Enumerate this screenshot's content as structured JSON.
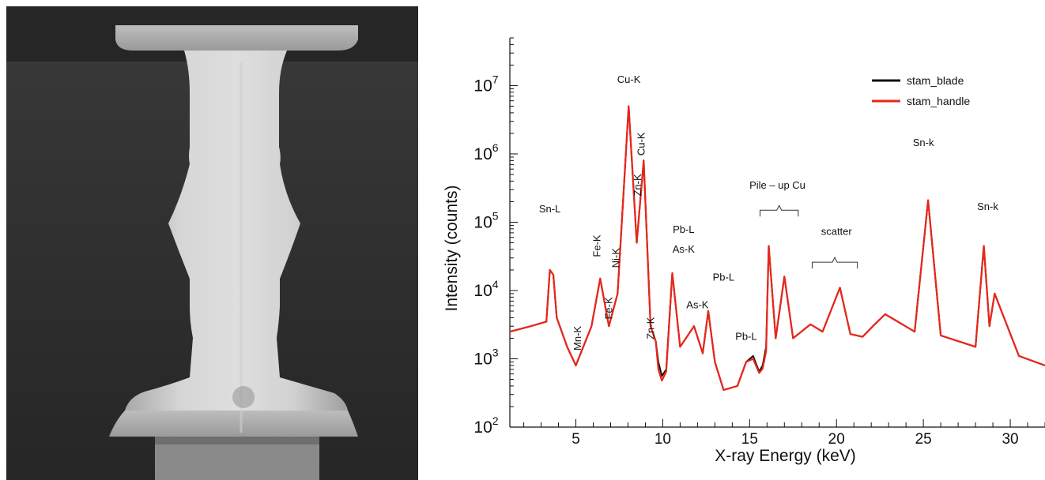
{
  "chart_data": {
    "type": "line",
    "title": "",
    "xlabel": "X-ray Energy (keV)",
    "ylabel": "Intensity (counts)",
    "xlim": [
      1.2,
      32.0
    ],
    "ylim": [
      100,
      50000000
    ],
    "yscale": "log",
    "xticks": [
      5,
      10,
      15,
      20,
      25,
      30
    ],
    "xtick_labels": [
      "5",
      "10",
      "15",
      "20",
      "25",
      "30"
    ],
    "yticks": [
      100,
      1000,
      10000,
      100000,
      1000000,
      10000000
    ],
    "ytick_labels": [
      {
        "base": "10",
        "exp": "2"
      },
      {
        "base": "10",
        "exp": "3"
      },
      {
        "base": "10",
        "exp": "4"
      },
      {
        "base": "10",
        "exp": "5"
      },
      {
        "base": "10",
        "exp": "6"
      },
      {
        "base": "10",
        "exp": "7"
      }
    ],
    "legend_position": "top-right",
    "series": [
      {
        "name": "stam_blade",
        "color": "#111111",
        "x": [
          1.2,
          2.4,
          3.3,
          3.5,
          3.7,
          3.9,
          4.5,
          5.0,
          5.9,
          6.4,
          6.9,
          7.4,
          8.04,
          8.5,
          8.9,
          9.3,
          9.6,
          9.75,
          9.95,
          10.2,
          10.55,
          11.0,
          11.8,
          12.3,
          12.62,
          13.0,
          13.5,
          14.3,
          14.8,
          15.2,
          15.55,
          15.75,
          15.95,
          16.1,
          16.5,
          17.0,
          17.5,
          18.5,
          19.2,
          20.2,
          20.8,
          21.5,
          22.2,
          22.8,
          24.5,
          25.27,
          26.0,
          28.0,
          28.48,
          28.8,
          29.1,
          30.5,
          32.0
        ],
        "y": [
          2500,
          3000,
          3500,
          20000,
          17000,
          4000,
          1500,
          800,
          3000,
          15000,
          3000,
          9000,
          5000000,
          50000,
          800000,
          3000,
          1800,
          900,
          560,
          700,
          18000,
          1500,
          3000,
          1200,
          5000,
          900,
          350,
          400,
          900,
          1100,
          650,
          800,
          1500,
          45000,
          2000,
          16000,
          2000,
          3200,
          2500,
          11000,
          2300,
          2100,
          3200,
          4500,
          2500,
          210000,
          2200,
          1500,
          45000,
          3000,
          9000,
          1100,
          800
        ]
      },
      {
        "name": "stam_handle",
        "color": "#e8261a",
        "x": [
          1.2,
          2.4,
          3.3,
          3.5,
          3.7,
          3.9,
          4.5,
          5.0,
          5.9,
          6.4,
          6.9,
          7.4,
          8.04,
          8.5,
          8.9,
          9.3,
          9.6,
          9.75,
          9.95,
          10.2,
          10.55,
          11.0,
          11.8,
          12.3,
          12.62,
          13.0,
          13.5,
          14.3,
          14.8,
          15.2,
          15.55,
          15.75,
          15.95,
          16.1,
          16.5,
          17.0,
          17.5,
          18.5,
          19.2,
          20.2,
          20.8,
          21.5,
          22.2,
          22.8,
          24.5,
          25.27,
          26.0,
          28.0,
          28.48,
          28.8,
          29.1,
          30.5,
          32.0
        ],
        "y": [
          2500,
          3000,
          3500,
          20000,
          17000,
          4000,
          1500,
          800,
          3000,
          15000,
          3000,
          9000,
          5000000,
          50000,
          800000,
          3000,
          1800,
          700,
          480,
          650,
          18000,
          1500,
          3000,
          1200,
          5000,
          900,
          350,
          400,
          900,
          1000,
          620,
          720,
          1300,
          45000,
          2000,
          16000,
          2000,
          3200,
          2500,
          11000,
          2300,
          2100,
          3200,
          4500,
          2500,
          210000,
          2200,
          1500,
          45000,
          3000,
          9000,
          1100,
          800
        ]
      }
    ],
    "annotations": [
      {
        "text": "Sn-L",
        "x": 3.5,
        "y": 140000,
        "rotate": false
      },
      {
        "text": "Mn-K",
        "x": 5.3,
        "y": 2000,
        "rotate": true
      },
      {
        "text": "Fe-K",
        "x": 6.4,
        "y": 45000,
        "rotate": true
      },
      {
        "text": "Fe-K",
        "x": 7.1,
        "y": 5500,
        "rotate": true
      },
      {
        "text": "Ni-K",
        "x": 7.5,
        "y": 30000,
        "rotate": true
      },
      {
        "text": "Cu-K",
        "x": 8.05,
        "y": 11000000,
        "rotate": false
      },
      {
        "text": "Cu-K",
        "x": 8.95,
        "y": 1400000,
        "rotate": true
      },
      {
        "text": "Zn-K",
        "x": 8.75,
        "y": 350000,
        "rotate": true
      },
      {
        "text": "Zn-K",
        "x": 9.5,
        "y": 2800,
        "rotate": true
      },
      {
        "text": "Pb-L",
        "x": 11.2,
        "y": 70000,
        "rotate": false
      },
      {
        "text": "As-K",
        "x": 11.2,
        "y": 36000,
        "rotate": false
      },
      {
        "text": "As-K",
        "x": 12.0,
        "y": 5500,
        "rotate": false
      },
      {
        "text": "Pb-L",
        "x": 13.5,
        "y": 14000,
        "rotate": false
      },
      {
        "text": "Pb-L",
        "x": 14.8,
        "y": 1900,
        "rotate": false
      },
      {
        "text": "Pile – up Cu",
        "x": 16.6,
        "y": 310000,
        "rotate": false
      },
      {
        "text": "scatter",
        "x": 20.0,
        "y": 65000,
        "rotate": false
      },
      {
        "text": "Sn-k",
        "x": 25.0,
        "y": 1300000,
        "rotate": false
      },
      {
        "text": "Sn-k",
        "x": 28.7,
        "y": 150000,
        "rotate": false
      }
    ],
    "brackets": [
      {
        "x0": 15.6,
        "x1": 17.8,
        "y": 150000
      },
      {
        "x0": 18.6,
        "x1": 21.2,
        "y": 26000
      }
    ]
  }
}
